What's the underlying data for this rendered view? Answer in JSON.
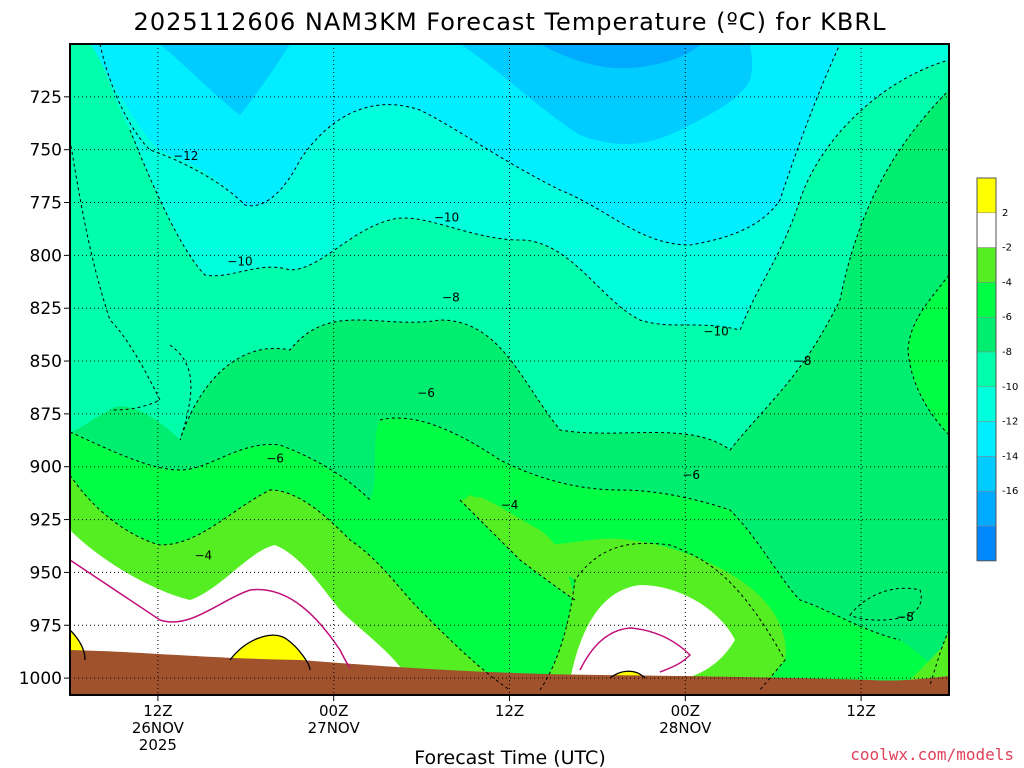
{
  "chart_data": {
    "type": "contour",
    "title": "2025112606 NAM3KM Forecast Temperature (ºC) for KBRL",
    "xlabel": "Forecast Time (UTC)",
    "ylabel": "",
    "y_axis": {
      "unit": "hPa",
      "ticks": [
        725,
        750,
        775,
        800,
        825,
        850,
        875,
        900,
        925,
        950,
        975,
        1000
      ],
      "range": [
        700,
        1008
      ],
      "inverted": true
    },
    "x_axis": {
      "unit": "hours since 2025-11-26 06Z",
      "range": [
        0,
        60
      ],
      "ticks": [
        {
          "hour": 6,
          "lines": [
            "12Z",
            "26NOV",
            "2025"
          ]
        },
        {
          "hour": 18,
          "lines": [
            "00Z",
            "27NOV"
          ]
        },
        {
          "hour": 30,
          "lines": [
            "12Z"
          ]
        },
        {
          "hour": 42,
          "lines": [
            "00Z",
            "28NOV"
          ]
        },
        {
          "hour": 54,
          "lines": [
            "12Z"
          ]
        }
      ]
    },
    "grid": true,
    "legend": {
      "placement": "right",
      "levels": [
        {
          "label": "2",
          "color": "#ffff00"
        },
        {
          "label": "-2",
          "color": "#ffffff"
        },
        {
          "label": "-4",
          "color": "#55ee22"
        },
        {
          "label": "-6",
          "color": "#00ff44"
        },
        {
          "label": "-8",
          "color": "#00ee70"
        },
        {
          "label": "-10",
          "color": "#00ffaa"
        },
        {
          "label": "-12",
          "color": "#00ffdd"
        },
        {
          "label": "-14",
          "color": "#00eeff"
        },
        {
          "label": "-16",
          "color": "#00ccff"
        },
        {
          "label": "",
          "color": "#00aaff"
        },
        {
          "label": "",
          "color": "#0088ff"
        }
      ]
    },
    "contour_labels": [
      {
        "text": "−12",
        "hour": 7.9,
        "p": 753
      },
      {
        "text": "−10",
        "hour": 11.6,
        "p": 803
      },
      {
        "text": "−10",
        "hour": 25.7,
        "p": 782
      },
      {
        "text": "−10",
        "hour": 44.1,
        "p": 836
      },
      {
        "text": "−8",
        "hour": 26.0,
        "p": 820
      },
      {
        "text": "−8",
        "hour": 50.0,
        "p": 850
      },
      {
        "text": "−8",
        "hour": 57.0,
        "p": 971
      },
      {
        "text": "−6",
        "hour": 14.0,
        "p": 896
      },
      {
        "text": "−6",
        "hour": 24.3,
        "p": 865
      },
      {
        "text": "−6",
        "hour": 42.4,
        "p": 904
      },
      {
        "text": "−4",
        "hour": 9.1,
        "p": 942
      },
      {
        "text": "−4",
        "hour": 30.0,
        "p": 918
      }
    ],
    "ground_color": "#a0522d",
    "credit": "coolwx.com/models"
  }
}
